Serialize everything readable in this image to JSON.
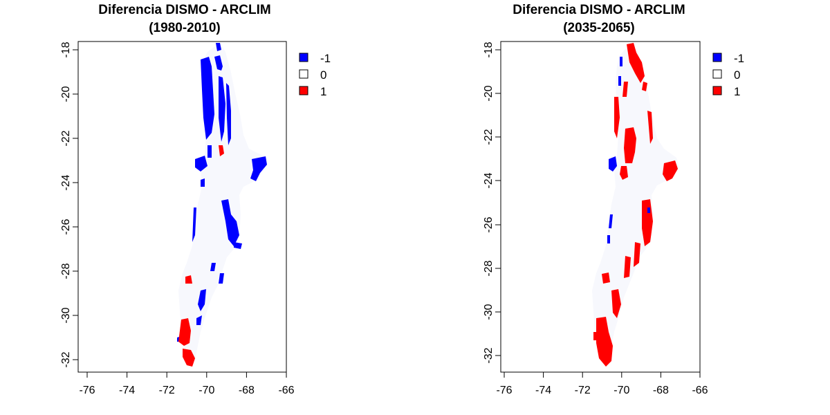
{
  "maps": [
    {
      "title_line1": "Diferencia DISMO - ARCLIM",
      "title_line2": "(1980-2010)",
      "x_ticks": [
        "-76",
        "-74",
        "-72",
        "-70",
        "-68",
        "-66"
      ],
      "y_ticks": [
        "-18",
        "-20",
        "-22",
        "-24",
        "-26",
        "-28",
        "-30",
        "-32"
      ],
      "legend": [
        {
          "label": "-1",
          "color": "#0000ff"
        },
        {
          "label": "0",
          "color": "#ffffff"
        },
        {
          "label": "1",
          "color": "#ff0000"
        }
      ]
    },
    {
      "title_line1": "Diferencia DISMO - ARCLIM",
      "title_line2": "(2035-2065)",
      "x_ticks": [
        "-76",
        "-74",
        "-72",
        "-70",
        "-68",
        "-66"
      ],
      "y_ticks": [
        "-18",
        "-20",
        "-22",
        "-24",
        "-26",
        "-28",
        "-30",
        "-32"
      ],
      "legend": [
        {
          "label": "-1",
          "color": "#0000ff"
        },
        {
          "label": "0",
          "color": "#ffffff"
        },
        {
          "label": "1",
          "color": "#ff0000"
        }
      ]
    }
  ],
  "colors": {
    "neg": "#0000ff",
    "zero": "#f7f8fd",
    "pos": "#ff0000"
  }
}
